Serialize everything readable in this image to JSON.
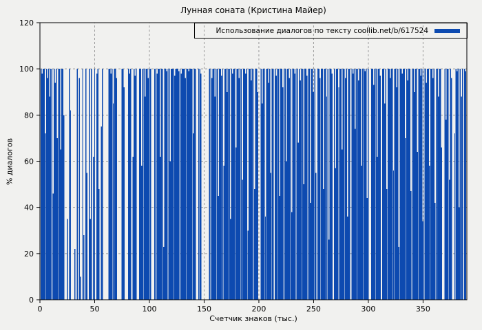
{
  "chart_data": {
    "type": "bar",
    "style": "impulses",
    "title": "Лунная соната (Кристина Майер)",
    "xlabel": "Счетчик знаков (тыс.)",
    "ylabel": "% диалогов",
    "legend_label": "Использование диалогов по тексту coollib.net/b/617524",
    "xlim": [
      0,
      390
    ],
    "ylim": [
      0,
      120
    ],
    "xticks": [
      0,
      50,
      100,
      150,
      200,
      250,
      300,
      350
    ],
    "yticks": [
      0,
      20,
      40,
      60,
      80,
      100,
      120
    ],
    "grid": "dashed",
    "legend_position": "top-right-boxed",
    "x_step": 1,
    "colors": {
      "bar": "#0d4ab0",
      "background": "#f1f1ef",
      "grid": "#9a9a9a",
      "axis": "#000000"
    },
    "values": [
      45,
      100,
      98,
      100,
      100,
      72,
      100,
      96,
      100,
      88,
      100,
      100,
      46,
      100,
      94,
      100,
      70,
      100,
      100,
      65,
      100,
      100,
      80,
      0,
      0,
      35,
      0,
      100,
      82,
      0,
      0,
      0,
      22,
      0,
      100,
      0,
      96,
      10,
      0,
      100,
      28,
      0,
      100,
      55,
      0,
      100,
      35,
      100,
      0,
      62,
      100,
      0,
      98,
      100,
      48,
      0,
      75,
      100,
      0,
      0,
      0,
      0,
      0,
      100,
      100,
      98,
      100,
      85,
      100,
      100,
      96,
      0,
      0,
      0,
      0,
      100,
      100,
      92,
      0,
      0,
      0,
      100,
      98,
      100,
      0,
      62,
      100,
      97,
      100,
      0,
      0,
      100,
      100,
      58,
      100,
      100,
      88,
      100,
      100,
      96,
      100,
      100,
      0,
      0,
      0,
      100,
      100,
      98,
      100,
      100,
      62,
      100,
      100,
      23,
      100,
      100,
      99,
      100,
      100,
      60,
      100,
      100,
      100,
      97,
      100,
      100,
      100,
      99,
      100,
      98,
      100,
      100,
      100,
      96,
      100,
      100,
      99,
      100,
      100,
      100,
      72,
      100,
      100,
      0,
      0,
      100,
      100,
      98,
      0,
      0,
      0,
      0,
      0,
      0,
      0,
      100,
      100,
      96,
      100,
      100,
      88,
      100,
      100,
      45,
      100,
      100,
      97,
      100,
      58,
      100,
      100,
      90,
      100,
      100,
      35,
      100,
      98,
      100,
      100,
      66,
      100,
      100,
      96,
      100,
      100,
      52,
      100,
      100,
      98,
      100,
      30,
      100,
      100,
      95,
      100,
      100,
      48,
      100,
      100,
      90,
      0,
      0,
      100,
      85,
      100,
      100,
      36,
      100,
      100,
      94,
      100,
      55,
      100,
      100,
      0,
      100,
      97,
      100,
      100,
      45,
      100,
      100,
      92,
      100,
      100,
      60,
      100,
      100,
      96,
      100,
      38,
      100,
      100,
      98,
      100,
      100,
      68,
      100,
      95,
      100,
      100,
      50,
      100,
      100,
      97,
      100,
      100,
      42,
      100,
      100,
      90,
      100,
      55,
      0,
      100,
      100,
      96,
      100,
      100,
      48,
      100,
      100,
      88,
      100,
      26,
      100,
      100,
      98,
      0,
      100,
      57,
      100,
      100,
      92,
      100,
      100,
      65,
      100,
      100,
      96,
      100,
      36,
      100,
      100,
      0,
      100,
      98,
      100,
      74,
      100,
      100,
      95,
      100,
      100,
      58,
      100,
      100,
      99,
      100,
      44,
      100,
      0,
      0,
      100,
      100,
      93,
      100,
      100,
      62,
      100,
      100,
      97,
      0,
      100,
      100,
      85,
      100,
      48,
      100,
      100,
      96,
      100,
      100,
      56,
      100,
      100,
      92,
      100,
      23,
      100,
      100,
      98,
      100,
      100,
      70,
      100,
      95,
      100,
      100,
      47,
      100,
      100,
      90,
      100,
      100,
      64,
      100,
      100,
      97,
      100,
      34,
      100,
      100,
      94,
      100,
      100,
      58,
      100,
      100,
      96,
      100,
      42,
      100,
      100,
      88,
      100,
      100,
      66,
      0,
      0,
      100,
      78,
      100,
      100,
      52,
      100,
      96,
      0,
      0,
      72,
      100,
      99,
      100,
      40,
      100,
      88,
      100,
      0,
      100,
      99
    ]
  }
}
